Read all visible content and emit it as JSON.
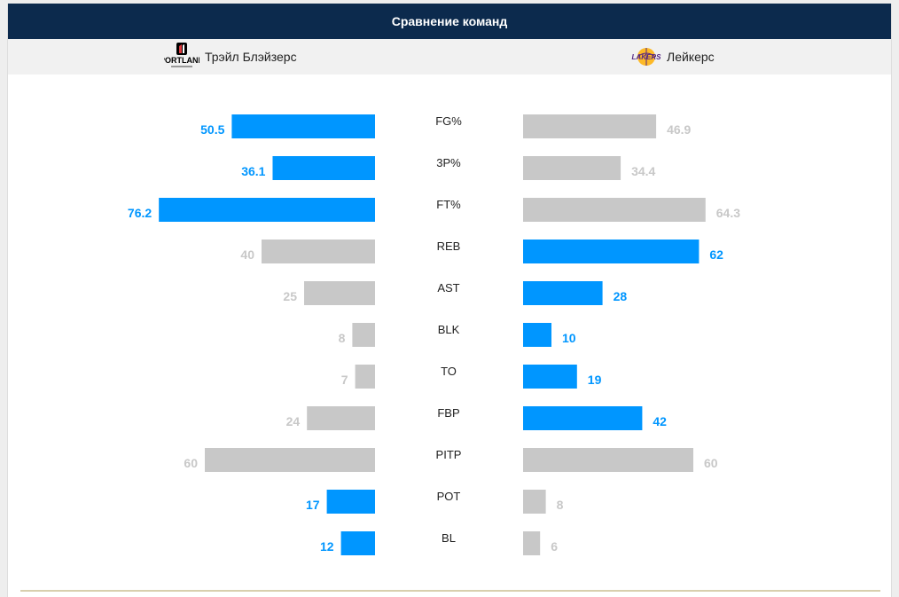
{
  "header": {
    "title": "Сравнение команд"
  },
  "teams": {
    "home": {
      "name": "Трэйл Блэйзерс",
      "logo_text": "PORTLAND",
      "logo_icon": "trail-blazers-logo-icon"
    },
    "away": {
      "name": "Лейкерс",
      "logo_text": "LAKERS",
      "logo_icon": "lakers-logo-icon"
    }
  },
  "colors": {
    "highlight": "#0096ff",
    "muted": "#c8c8c8",
    "header_bg": "#0c2a4d",
    "team_bar_bg": "#f1f1f1"
  },
  "chart_data": {
    "type": "bar",
    "orientation": "horizontal-mirrored",
    "categories": [
      "FG%",
      "3P%",
      "FT%",
      "REB",
      "AST",
      "BLK",
      "TO",
      "FBP",
      "PITP",
      "POT",
      "BL"
    ],
    "series": [
      {
        "name": "Трэйл Блэйзерс",
        "values": [
          50.5,
          36.1,
          76.2,
          40,
          25,
          8,
          7,
          24,
          60,
          17,
          12
        ],
        "labels": [
          "50.5",
          "36.1",
          "76.2",
          "40",
          "25",
          "8",
          "7",
          "24",
          "60",
          "17",
          "12"
        ],
        "highlighted": [
          true,
          true,
          true,
          false,
          false,
          false,
          false,
          false,
          false,
          true,
          true
        ]
      },
      {
        "name": "Лейкерс",
        "values": [
          46.9,
          34.4,
          64.3,
          62,
          28,
          10,
          19,
          42,
          60,
          8,
          6
        ],
        "labels": [
          "46.9",
          "34.4",
          "64.3",
          "62",
          "28",
          "10",
          "19",
          "42",
          "60",
          "8",
          "6"
        ],
        "highlighted": [
          false,
          false,
          false,
          true,
          true,
          true,
          true,
          true,
          false,
          false,
          false
        ]
      }
    ]
  }
}
